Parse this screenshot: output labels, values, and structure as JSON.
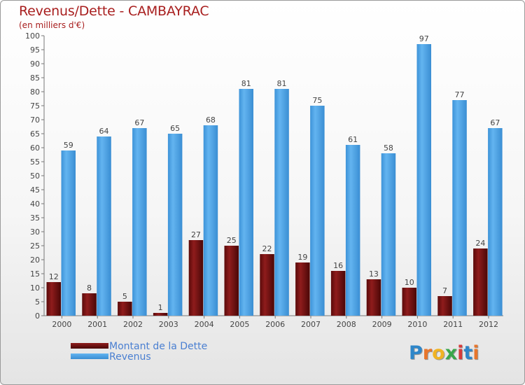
{
  "chart_data": {
    "type": "bar",
    "title": "Revenus/Dette - CAMBAYRAC",
    "subtitle": "(en milliers d'€)",
    "categories": [
      "2000",
      "2001",
      "2002",
      "2003",
      "2004",
      "2005",
      "2006",
      "2007",
      "2008",
      "2009",
      "2010",
      "2011",
      "2012"
    ],
    "series": [
      {
        "name": "Montant de la Dette",
        "color": "#6b0f0f",
        "values": [
          12,
          8,
          5,
          1,
          27,
          25,
          22,
          19,
          16,
          13,
          10,
          7,
          24
        ]
      },
      {
        "name": "Revenus",
        "color": "#4fa3e3",
        "values": [
          59,
          64,
          67,
          65,
          68,
          81,
          81,
          75,
          61,
          58,
          97,
          77,
          67
        ]
      }
    ],
    "ylim": [
      0,
      100
    ],
    "yticks": [
      0,
      5,
      10,
      15,
      20,
      25,
      30,
      35,
      40,
      45,
      50,
      55,
      60,
      65,
      70,
      75,
      80,
      85,
      90,
      95,
      100
    ],
    "grid": false,
    "legend_position": "bottom-left"
  },
  "logo": {
    "text": "Proxiti",
    "letter_colors": [
      "#2e86c9",
      "#e8762c",
      "#f0b323",
      "#3aa64a",
      "#d63b3b",
      "#2e86c9",
      "#e8762c"
    ]
  }
}
